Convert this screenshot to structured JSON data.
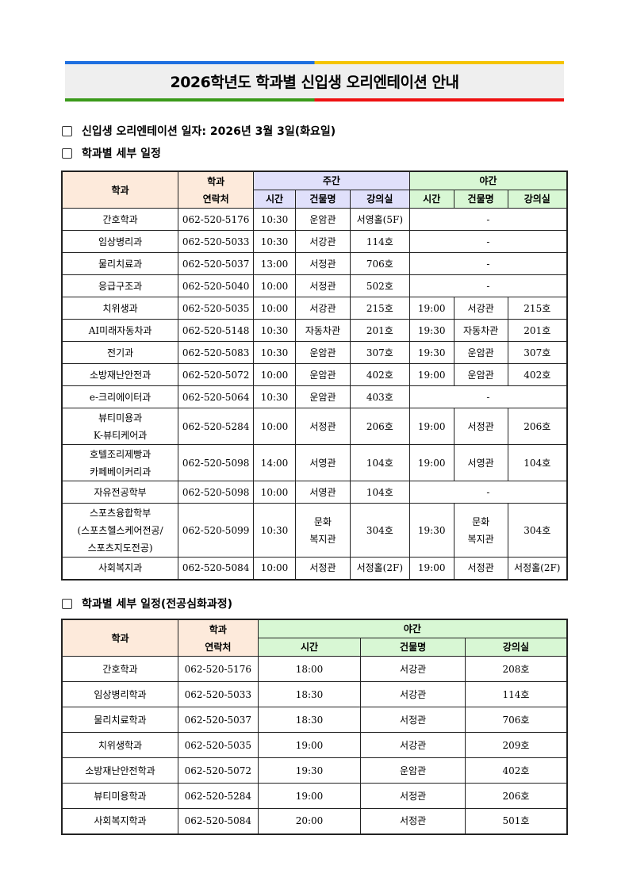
{
  "title": "2026학년도 학과별 신입생 오리엔테이션 안내",
  "sections": [
    "신입생 오리엔테이션 일자: 2026년 3월 3일(화요일)",
    "학과별 세부 일정",
    "학과별 세부 일정(전공심화과정)"
  ],
  "colors": {
    "header_dept": "#fdeadb",
    "header_day": "#e0e0fb",
    "header_night": "#d8f7d4",
    "line_blue": "#1e6fe0",
    "line_yellow": "#f5c400",
    "line_green": "#3a9a1a",
    "line_red": "#ee1111"
  },
  "table1": {
    "headers": {
      "dept": "학과",
      "contact": "학과\n연락처",
      "day": "주간",
      "night": "야간",
      "time": "시간",
      "building": "건물명",
      "room": "강의실"
    },
    "rows": [
      [
        "간호학과",
        "062-520-5176",
        "10:30",
        "운암관",
        "서영홀(5F)",
        "-"
      ],
      [
        "임상병리과",
        "062-520-5033",
        "10:30",
        "서강관",
        "114호",
        "-"
      ],
      [
        "물리치료과",
        "062-520-5037",
        "13:00",
        "서정관",
        "706호",
        "-"
      ],
      [
        "응급구조과",
        "062-520-5040",
        "10:00",
        "서정관",
        "502호",
        "-"
      ],
      [
        "치위생과",
        "062-520-5035",
        "10:00",
        "서강관",
        "215호",
        "19:00",
        "서강관",
        "215호"
      ],
      [
        "AI미래자동차과",
        "062-520-5148",
        "10:30",
        "자동차관",
        "201호",
        "19:30",
        "자동차관",
        "201호"
      ],
      [
        "전기과",
        "062-520-5083",
        "10:30",
        "운암관",
        "307호",
        "19:30",
        "운암관",
        "307호"
      ],
      [
        "소방재난안전과",
        "062-520-5072",
        "10:00",
        "운암관",
        "402호",
        "19:00",
        "운암관",
        "402호"
      ],
      [
        "e-크리에이터과",
        "062-520-5064",
        "10:30",
        "운암관",
        "403호",
        "-"
      ],
      [
        "뷰티미용과\nK-뷰티케어과",
        "062-520-5284",
        "10:00",
        "서정관",
        "206호",
        "19:00",
        "서정관",
        "206호"
      ],
      [
        "호텔조리제빵과\n카페베이커리과",
        "062-520-5098",
        "14:00",
        "서영관",
        "104호",
        "19:00",
        "서영관",
        "104호"
      ],
      [
        "자유전공학부",
        "062-520-5098",
        "10:00",
        "서영관",
        "104호",
        "-"
      ],
      [
        "스포츠융합학부\n(스포츠헬스케어전공/\n스포츠지도전공)",
        "062-520-5099",
        "10:30",
        "문화\n복지관",
        "304호",
        "19:30",
        "문화\n복지관",
        "304호"
      ],
      [
        "사회복지과",
        "062-520-5084",
        "10:00",
        "서정관",
        "서정홀(2F)",
        "19:00",
        "서정관",
        "서정홀(2F)"
      ]
    ]
  },
  "table2": {
    "headers": {
      "dept": "학과",
      "contact": "학과\n연락처",
      "night": "야간",
      "time": "시간",
      "building": "건물명",
      "room": "강의실"
    },
    "rows": [
      [
        "간호학과",
        "062-520-5176",
        "18:00",
        "서강관",
        "208호"
      ],
      [
        "임상병리학과",
        "062-520-5033",
        "18:30",
        "서강관",
        "114호"
      ],
      [
        "물리치료학과",
        "062-520-5037",
        "18:30",
        "서정관",
        "706호"
      ],
      [
        "치위생학과",
        "062-520-5035",
        "19:00",
        "서강관",
        "209호"
      ],
      [
        "소방재난안전학과",
        "062-520-5072",
        "19:30",
        "운암관",
        "402호"
      ],
      [
        "뷰티미용학과",
        "062-520-5284",
        "19:00",
        "서정관",
        "206호"
      ],
      [
        "사회복지학과",
        "062-520-5084",
        "20:00",
        "서정관",
        "501호"
      ]
    ]
  }
}
